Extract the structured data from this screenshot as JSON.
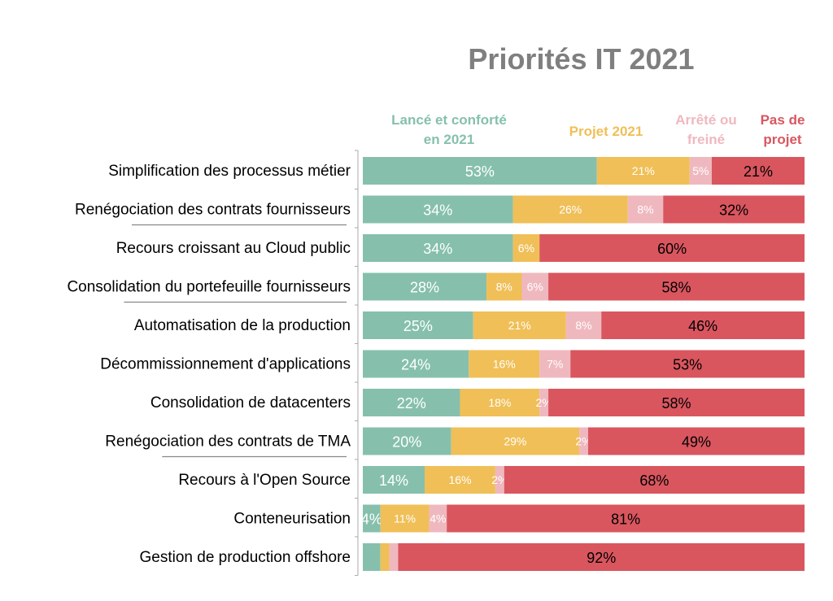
{
  "chart_data": {
    "type": "bar",
    "orientation": "horizontal",
    "stacked": true,
    "percent": true,
    "title": "Priorités IT 2021",
    "categories": [
      "Simplification des processus métier",
      "Renégociation des contrats fournisseurs",
      "Recours croissant au Cloud public",
      "Consolidation du portefeuille fournisseurs",
      "Automatisation de la production",
      "Décommissionnement d'applications",
      "Consolidation de datacenters",
      "Renégociation des contrats de TMA",
      "Recours à l'Open Source",
      "Conteneurisation",
      "Gestion de production offshore"
    ],
    "series": [
      {
        "name": "Lancé et conforté en 2021",
        "color": "#86c0ad",
        "values": [
          53,
          34,
          34,
          28,
          25,
          24,
          22,
          20,
          14,
          4,
          4
        ],
        "labels": [
          "53%",
          "34%",
          "34%",
          "28%",
          "25%",
          "24%",
          "22%",
          "20%",
          "14%",
          "4%",
          ""
        ]
      },
      {
        "name": "Projet 2021",
        "color": "#f0bf57",
        "values": [
          21,
          26,
          6,
          8,
          21,
          16,
          18,
          29,
          16,
          11,
          2
        ],
        "labels": [
          "21%",
          "26%",
          "6%",
          "8%",
          "21%",
          "16%",
          "18%",
          "29%",
          "16%",
          "11%",
          ""
        ]
      },
      {
        "name": "Arrêté ou freiné",
        "color": "#efb8bf",
        "values": [
          5,
          8,
          0,
          6,
          8,
          7,
          2,
          2,
          2,
          4,
          2
        ],
        "labels": [
          "5%",
          "8%",
          "",
          "6%",
          "8%",
          "7%",
          "2%",
          "2%",
          "2%",
          "4%",
          ""
        ]
      },
      {
        "name": "Pas de projet",
        "color": "#d9565f",
        "values": [
          21,
          32,
          60,
          58,
          46,
          53,
          58,
          49,
          68,
          81,
          92
        ],
        "labels": [
          "21%",
          "32%",
          "60%",
          "58%",
          "46%",
          "53%",
          "58%",
          "49%",
          "68%",
          "81%",
          "92%"
        ]
      }
    ],
    "legend_placement": "top",
    "grid": false,
    "underlined_categories": [
      1,
      3,
      7
    ]
  }
}
